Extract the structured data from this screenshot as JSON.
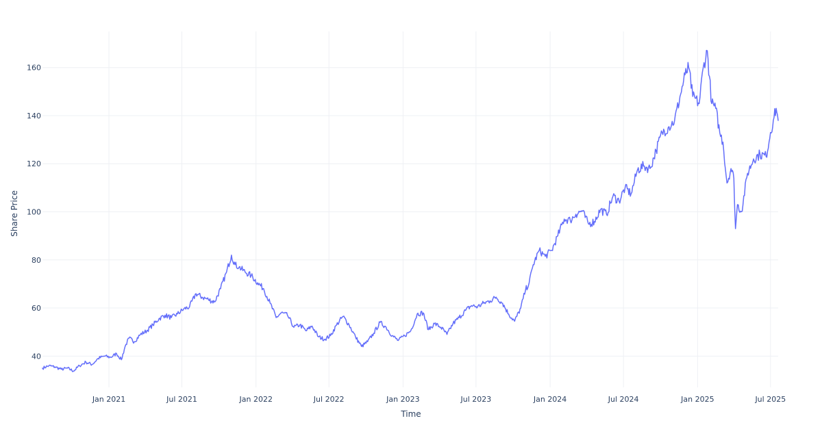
{
  "chart_data": {
    "type": "line",
    "title": "",
    "xlabel": "Time",
    "ylabel": "Share Price",
    "x_type": "date",
    "xlim": [
      "2020-07-20",
      "2025-07-20"
    ],
    "ylim": [
      27,
      175
    ],
    "yticks": [
      40,
      60,
      80,
      100,
      120,
      140,
      160
    ],
    "xticks": [
      {
        "date": "2021-01-01",
        "label": "Jan 2021"
      },
      {
        "date": "2021-07-01",
        "label": "Jul 2021"
      },
      {
        "date": "2022-01-01",
        "label": "Jan 2022"
      },
      {
        "date": "2022-07-01",
        "label": "Jul 2022"
      },
      {
        "date": "2023-01-01",
        "label": "Jan 2023"
      },
      {
        "date": "2023-07-01",
        "label": "Jul 2023"
      },
      {
        "date": "2024-01-01",
        "label": "Jan 2024"
      },
      {
        "date": "2024-07-01",
        "label": "Jul 2024"
      },
      {
        "date": "2025-01-01",
        "label": "Jan 2025"
      },
      {
        "date": "2025-07-01",
        "label": "Jul 2025"
      }
    ],
    "grid": true,
    "legend": "none",
    "colors": {
      "line": "#636efa",
      "grid": "#eef0f4",
      "text": "#2a3f5f"
    },
    "series": [
      {
        "name": "",
        "x": [
          "2020-07-20",
          "2020-08-05",
          "2020-08-20",
          "2020-09-05",
          "2020-09-20",
          "2020-10-05",
          "2020-10-20",
          "2020-11-05",
          "2020-11-20",
          "2020-12-05",
          "2020-12-20",
          "2021-01-05",
          "2021-01-20",
          "2021-02-01",
          "2021-02-10",
          "2021-02-20",
          "2021-03-05",
          "2021-03-20",
          "2021-04-05",
          "2021-04-20",
          "2021-05-05",
          "2021-05-20",
          "2021-06-05",
          "2021-06-20",
          "2021-07-05",
          "2021-07-20",
          "2021-08-05",
          "2021-08-20",
          "2021-09-05",
          "2021-09-20",
          "2021-10-05",
          "2021-10-20",
          "2021-11-01",
          "2021-11-10",
          "2021-11-20",
          "2021-12-05",
          "2021-12-20",
          "2022-01-05",
          "2022-01-20",
          "2022-02-05",
          "2022-02-20",
          "2022-03-05",
          "2022-03-20",
          "2022-04-05",
          "2022-04-20",
          "2022-05-05",
          "2022-05-20",
          "2022-06-05",
          "2022-06-20",
          "2022-07-05",
          "2022-07-20",
          "2022-08-05",
          "2022-08-20",
          "2022-09-05",
          "2022-09-20",
          "2022-10-05",
          "2022-10-20",
          "2022-11-05",
          "2022-11-20",
          "2022-12-05",
          "2022-12-20",
          "2023-01-05",
          "2023-01-20",
          "2023-02-05",
          "2023-02-20",
          "2023-03-05",
          "2023-03-20",
          "2023-04-05",
          "2023-04-20",
          "2023-05-05",
          "2023-05-20",
          "2023-06-05",
          "2023-06-20",
          "2023-07-05",
          "2023-07-20",
          "2023-08-05",
          "2023-08-20",
          "2023-09-05",
          "2023-09-20",
          "2023-10-05",
          "2023-10-20",
          "2023-11-01",
          "2023-11-10",
          "2023-11-20",
          "2023-12-05",
          "2023-12-20",
          "2024-01-05",
          "2024-01-20",
          "2024-02-05",
          "2024-02-20",
          "2024-03-05",
          "2024-03-20",
          "2024-04-05",
          "2024-04-20",
          "2024-05-05",
          "2024-05-20",
          "2024-06-05",
          "2024-06-20",
          "2024-07-05",
          "2024-07-20",
          "2024-08-05",
          "2024-08-20",
          "2024-09-05",
          "2024-09-20",
          "2024-10-05",
          "2024-10-20",
          "2024-11-05",
          "2024-11-20",
          "2024-12-01",
          "2024-12-10",
          "2024-12-20",
          "2025-01-05",
          "2025-01-15",
          "2025-01-25",
          "2025-02-05",
          "2025-02-15",
          "2025-02-25",
          "2025-03-05",
          "2025-03-15",
          "2025-03-25",
          "2025-04-01",
          "2025-04-05",
          "2025-04-10",
          "2025-04-20",
          "2025-05-05",
          "2025-05-20",
          "2025-06-05",
          "2025-06-20",
          "2025-07-01",
          "2025-07-08",
          "2025-07-15",
          "2025-07-20"
        ],
        "y": [
          35.0,
          36.0,
          35.5,
          34.5,
          35.0,
          33.8,
          36.0,
          37.5,
          36.5,
          39.0,
          40.0,
          39.5,
          41.0,
          38.5,
          44.0,
          47.5,
          46.0,
          49.0,
          50.5,
          53.0,
          55.5,
          57.0,
          56.0,
          57.5,
          59.5,
          60.5,
          66.0,
          64.5,
          63.5,
          62.5,
          68.0,
          75.0,
          82.0,
          78.0,
          77.0,
          75.0,
          73.5,
          70.5,
          68.0,
          62.0,
          56.0,
          58.0,
          57.0,
          52.0,
          53.0,
          50.5,
          52.5,
          48.0,
          47.0,
          48.5,
          53.0,
          56.5,
          53.0,
          48.0,
          44.0,
          46.0,
          49.5,
          54.0,
          52.0,
          48.5,
          46.5,
          48.5,
          50.5,
          57.5,
          58.0,
          51.0,
          53.5,
          52.0,
          49.0,
          53.5,
          56.0,
          59.0,
          61.0,
          60.5,
          62.0,
          63.0,
          64.5,
          62.0,
          57.5,
          54.5,
          60.0,
          67.5,
          70.5,
          78.0,
          84.0,
          81.5,
          84.0,
          90.0,
          97.0,
          96.5,
          99.0,
          100.5,
          95.0,
          96.0,
          101.0,
          99.0,
          106.5,
          104.5,
          110.0,
          107.5,
          117.5,
          119.0,
          118.0,
          125.5,
          133.0,
          135.0,
          138.0,
          149.0,
          157.0,
          160.0,
          148.0,
          145.0,
          160.0,
          167.0,
          145.0,
          143.0,
          133.0,
          129.0,
          112.0,
          118.0,
          114.0,
          93.0,
          103.0,
          100.0,
          116.0,
          122.0,
          124.0,
          123.0,
          133.0,
          138.0,
          143.0,
          138.0
        ]
      }
    ]
  }
}
